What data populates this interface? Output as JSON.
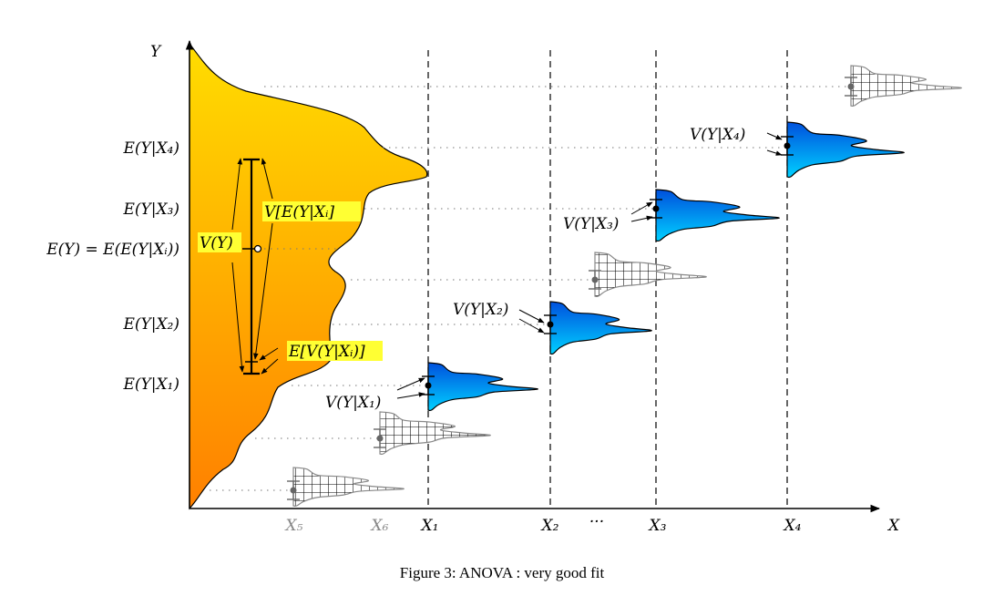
{
  "axes": {
    "y_label": "Y",
    "x_label": "X"
  },
  "y_labels": [
    {
      "text": "E(Y|X₄)"
    },
    {
      "text": "E(Y|X₃)"
    },
    {
      "text": "E(Y) = E(E(Y|Xᵢ))"
    },
    {
      "text": "E(Y|X₂)"
    },
    {
      "text": "E(Y|X₁)"
    }
  ],
  "x_labels": [
    {
      "text": "X₅",
      "muted": true
    },
    {
      "text": "X₆",
      "muted": true
    },
    {
      "text": "X₁"
    },
    {
      "text": "X₂"
    },
    {
      "text": "···"
    },
    {
      "text": "X₃"
    },
    {
      "text": "X₄"
    }
  ],
  "annotations": {
    "total_variance": "V(Y)",
    "variance_of_means": "V[E(Y|Xᵢ]",
    "mean_of_variances": "E[V(Y|Xᵢ)]",
    "v1": "V(Y|X₁)",
    "v2": "V(Y|X₂)",
    "v3": "V(Y|X₃)",
    "v4": "V(Y|X₄)"
  },
  "colors": {
    "marginal_top": "#ffdd00",
    "marginal_bottom": "#ff8800",
    "conditional_top": "#0055dd",
    "conditional_bottom": "#00ccff",
    "highlight": "#ffff33"
  },
  "caption": "Figure 3: ANOVA : very good fit"
}
